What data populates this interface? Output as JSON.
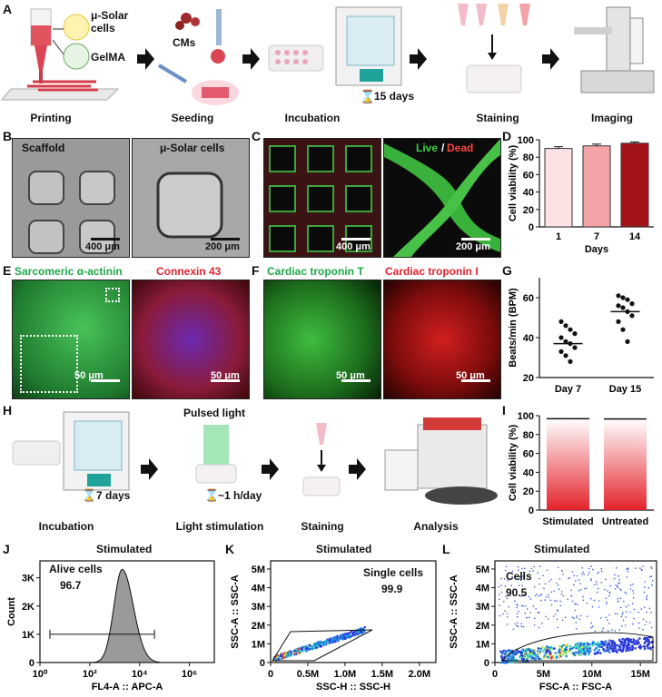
{
  "panels": {
    "A": "A",
    "B": "B",
    "C": "C",
    "D": "D",
    "E": "E",
    "F": "F",
    "G": "G",
    "H": "H",
    "I": "I",
    "J": "J",
    "K": "K",
    "L": "L"
  },
  "panelA": {
    "ink1": "μ-Solar",
    "ink2": "cells",
    "ink3": "GelMA",
    "cms": "CMs",
    "duration": "15 days",
    "steps": [
      "Printing",
      "Seeding",
      "Incubation",
      "Staining",
      "Imaging"
    ]
  },
  "panelB": {
    "label1": "Scaffold",
    "label2": "μ-Solar cells",
    "scale1": "400 μm",
    "scale2": "200 μm"
  },
  "panelC": {
    "live": "Live",
    "slash": "/",
    "dead": "Dead",
    "scale1": "400 μm",
    "scale2": "200 μm"
  },
  "panelE": {
    "stain1": "Sarcomeric α-actinin",
    "stain2": "Connexin 43",
    "scale1": "50 μm",
    "scale2": "50 μm"
  },
  "panelF": {
    "stain1": "Cardiac troponin T",
    "stain2": "Cardiac troponin I",
    "scale1": "50 μm",
    "scale2": "50 μm"
  },
  "panelH": {
    "duration1": "7 days",
    "pulsed": "Pulsed light",
    "duration2": "~1 h/day",
    "steps": [
      "Incubation",
      "Light stimulation",
      "Staining",
      "Analysis"
    ]
  },
  "chart_data": [
    {
      "id": "D",
      "type": "bar",
      "categories": [
        "1",
        "7",
        "14"
      ],
      "values": [
        90,
        93,
        96
      ],
      "errors": [
        2,
        2,
        1.5
      ],
      "colors": [
        "#fde2e4",
        "#f4a3a8",
        "#a4121a"
      ],
      "xlabel": "Days",
      "ylabel": "Cell viability (%)",
      "ylim": [
        0,
        100
      ],
      "yticks": [
        "0",
        "20",
        "40",
        "60",
        "80",
        "100"
      ]
    },
    {
      "id": "G",
      "type": "scatter",
      "categories": [
        "Day 7",
        "Day 15"
      ],
      "series": [
        {
          "values": [
            48,
            46,
            44,
            42,
            40,
            38,
            37,
            35,
            33,
            31,
            28
          ],
          "mean": 37
        },
        {
          "values": [
            61,
            60,
            59,
            57,
            56,
            55,
            53,
            51,
            48,
            44,
            38
          ],
          "mean": 53
        }
      ],
      "ylabel": "Beats/min (BPM)",
      "ylim": [
        20,
        70
      ],
      "yticks": [
        "20",
        "40",
        "60"
      ]
    },
    {
      "id": "I",
      "type": "bar",
      "categories": [
        "Stimulated",
        "Untreated"
      ],
      "values": [
        96.7,
        96.5
      ],
      "ylabel": "Cell viability (%)",
      "ylim": [
        0,
        100
      ],
      "yticks": [
        "0",
        "20",
        "40",
        "60",
        "80",
        "100"
      ]
    },
    {
      "id": "J",
      "type": "area",
      "title": "Stimulated",
      "gate_name": "Alive cells",
      "gate_value": "96.7",
      "xlabel": "FL4-A :: APC-A",
      "ylabel": "Count",
      "xticks": [
        "10⁰",
        "10²",
        "10⁴",
        "10⁶"
      ],
      "yticks": [
        "0",
        "1K",
        "2K",
        "3K"
      ],
      "peak_log_x": 3.3,
      "peak_count": 3300
    },
    {
      "id": "K",
      "type": "scatter",
      "title": "Stimulated",
      "gate_name": "Single cells",
      "gate_value": "99.9",
      "xlabel": "SSC-H :: SSC-H",
      "ylabel": "SSC-A :: SSC-A",
      "xticks": [
        "0",
        "0.5M",
        "1.0M",
        "1.5M",
        "2.0M"
      ],
      "yticks": [
        "0",
        "1M",
        "2M",
        "3M",
        "4M",
        "5M"
      ]
    },
    {
      "id": "L",
      "type": "scatter",
      "title": "Stimulated",
      "gate_name": "Cells",
      "gate_value": "90.5",
      "xlabel": "FSC-A :: FSC-A",
      "ylabel": "SSC-A :: SSC-A",
      "xticks": [
        "0",
        "5M",
        "10M",
        "15M"
      ],
      "yticks": [
        "0",
        "1M",
        "2M",
        "3M",
        "4M",
        "5M"
      ]
    }
  ]
}
